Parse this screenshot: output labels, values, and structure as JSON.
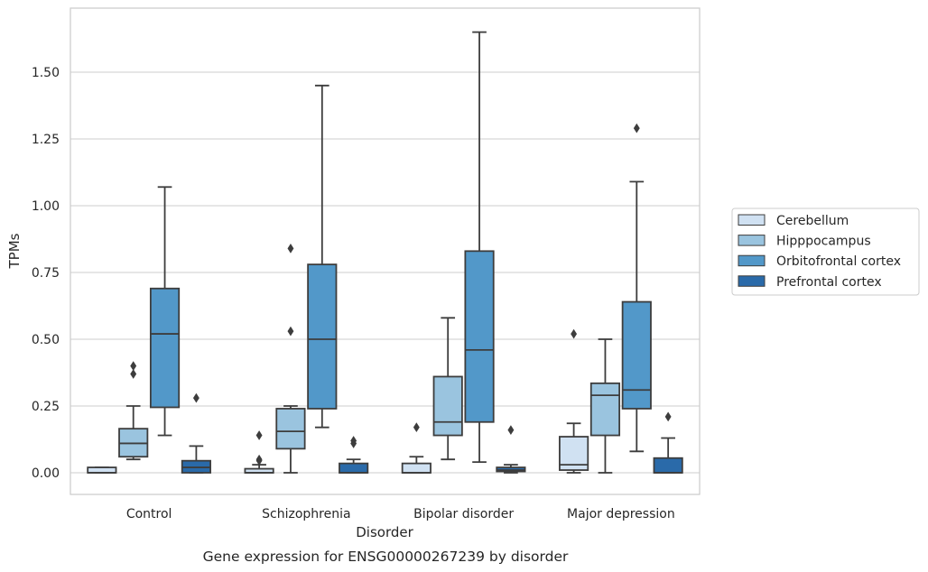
{
  "chart_data": {
    "type": "box",
    "title": "",
    "caption": "Gene expression for ENSG00000267239 by disorder",
    "xlabel": "Disorder",
    "ylabel": "TPMs",
    "ylim": [
      -0.08,
      1.76
    ],
    "yticks": [
      0.0,
      0.25,
      0.5,
      0.75,
      1.0,
      1.25,
      1.5
    ],
    "ytick_labels": [
      "0.00",
      "0.25",
      "0.50",
      "0.75",
      "1.00",
      "1.25",
      "1.50"
    ],
    "grid": "horizontal",
    "legend_position": "right",
    "categories": [
      "Control",
      "Schizophrenia",
      "Bipolar disorder",
      "Major depression"
    ],
    "series": [
      {
        "name": "Cerebellum",
        "color": "#d0e1f2",
        "boxes": [
          {
            "whislo": 0.0,
            "q1": 0.0,
            "med": 0.0,
            "q3": 0.02,
            "whishi": 0.02,
            "fliers": []
          },
          {
            "whislo": 0.0,
            "q1": 0.0,
            "med": 0.0,
            "q3": 0.015,
            "whishi": 0.03,
            "fliers": [
              0.05,
              0.045,
              0.14
            ]
          },
          {
            "whislo": 0.0,
            "q1": 0.0,
            "med": 0.0,
            "q3": 0.035,
            "whishi": 0.06,
            "fliers": [
              0.17
            ]
          },
          {
            "whislo": 0.0,
            "q1": 0.01,
            "med": 0.03,
            "q3": 0.135,
            "whishi": 0.185,
            "fliers": [
              0.52
            ]
          }
        ]
      },
      {
        "name": "Hipppocampus",
        "color": "#9ac4df",
        "boxes": [
          {
            "whislo": 0.05,
            "q1": 0.06,
            "med": 0.11,
            "q3": 0.165,
            "whishi": 0.25,
            "fliers": [
              0.37,
              0.4
            ]
          },
          {
            "whislo": 0.0,
            "q1": 0.09,
            "med": 0.155,
            "q3": 0.24,
            "whishi": 0.25,
            "fliers": [
              0.53,
              0.84
            ]
          },
          {
            "whislo": 0.05,
            "q1": 0.14,
            "med": 0.19,
            "q3": 0.36,
            "whishi": 0.58,
            "fliers": []
          },
          {
            "whislo": 0.0,
            "q1": 0.14,
            "med": 0.29,
            "q3": 0.335,
            "whishi": 0.5,
            "fliers": []
          }
        ]
      },
      {
        "name": "Orbitofrontal cortex",
        "color": "#5298c9",
        "boxes": [
          {
            "whislo": 0.14,
            "q1": 0.245,
            "med": 0.52,
            "q3": 0.69,
            "whishi": 1.07,
            "fliers": []
          },
          {
            "whislo": 0.17,
            "q1": 0.24,
            "med": 0.5,
            "q3": 0.78,
            "whishi": 1.45,
            "fliers": []
          },
          {
            "whislo": 0.04,
            "q1": 0.19,
            "med": 0.46,
            "q3": 0.83,
            "whishi": 1.65,
            "fliers": []
          },
          {
            "whislo": 0.08,
            "q1": 0.24,
            "med": 0.31,
            "q3": 0.64,
            "whishi": 1.09,
            "fliers": [
              1.29
            ]
          }
        ]
      },
      {
        "name": "Prefrontal cortex",
        "color": "#2a6aa9",
        "boxes": [
          {
            "whislo": 0.0,
            "q1": 0.0,
            "med": 0.02,
            "q3": 0.045,
            "whishi": 0.1,
            "fliers": [
              0.28
            ]
          },
          {
            "whislo": 0.0,
            "q1": 0.0,
            "med": 0.0,
            "q3": 0.035,
            "whishi": 0.05,
            "fliers": [
              0.11,
              0.12
            ]
          },
          {
            "whislo": 0.0,
            "q1": 0.005,
            "med": 0.01,
            "q3": 0.02,
            "whishi": 0.03,
            "fliers": [
              0.16
            ]
          },
          {
            "whislo": 0.0,
            "q1": 0.0,
            "med": 0.0,
            "q3": 0.055,
            "whishi": 0.13,
            "fliers": [
              0.21
            ]
          }
        ]
      }
    ]
  }
}
